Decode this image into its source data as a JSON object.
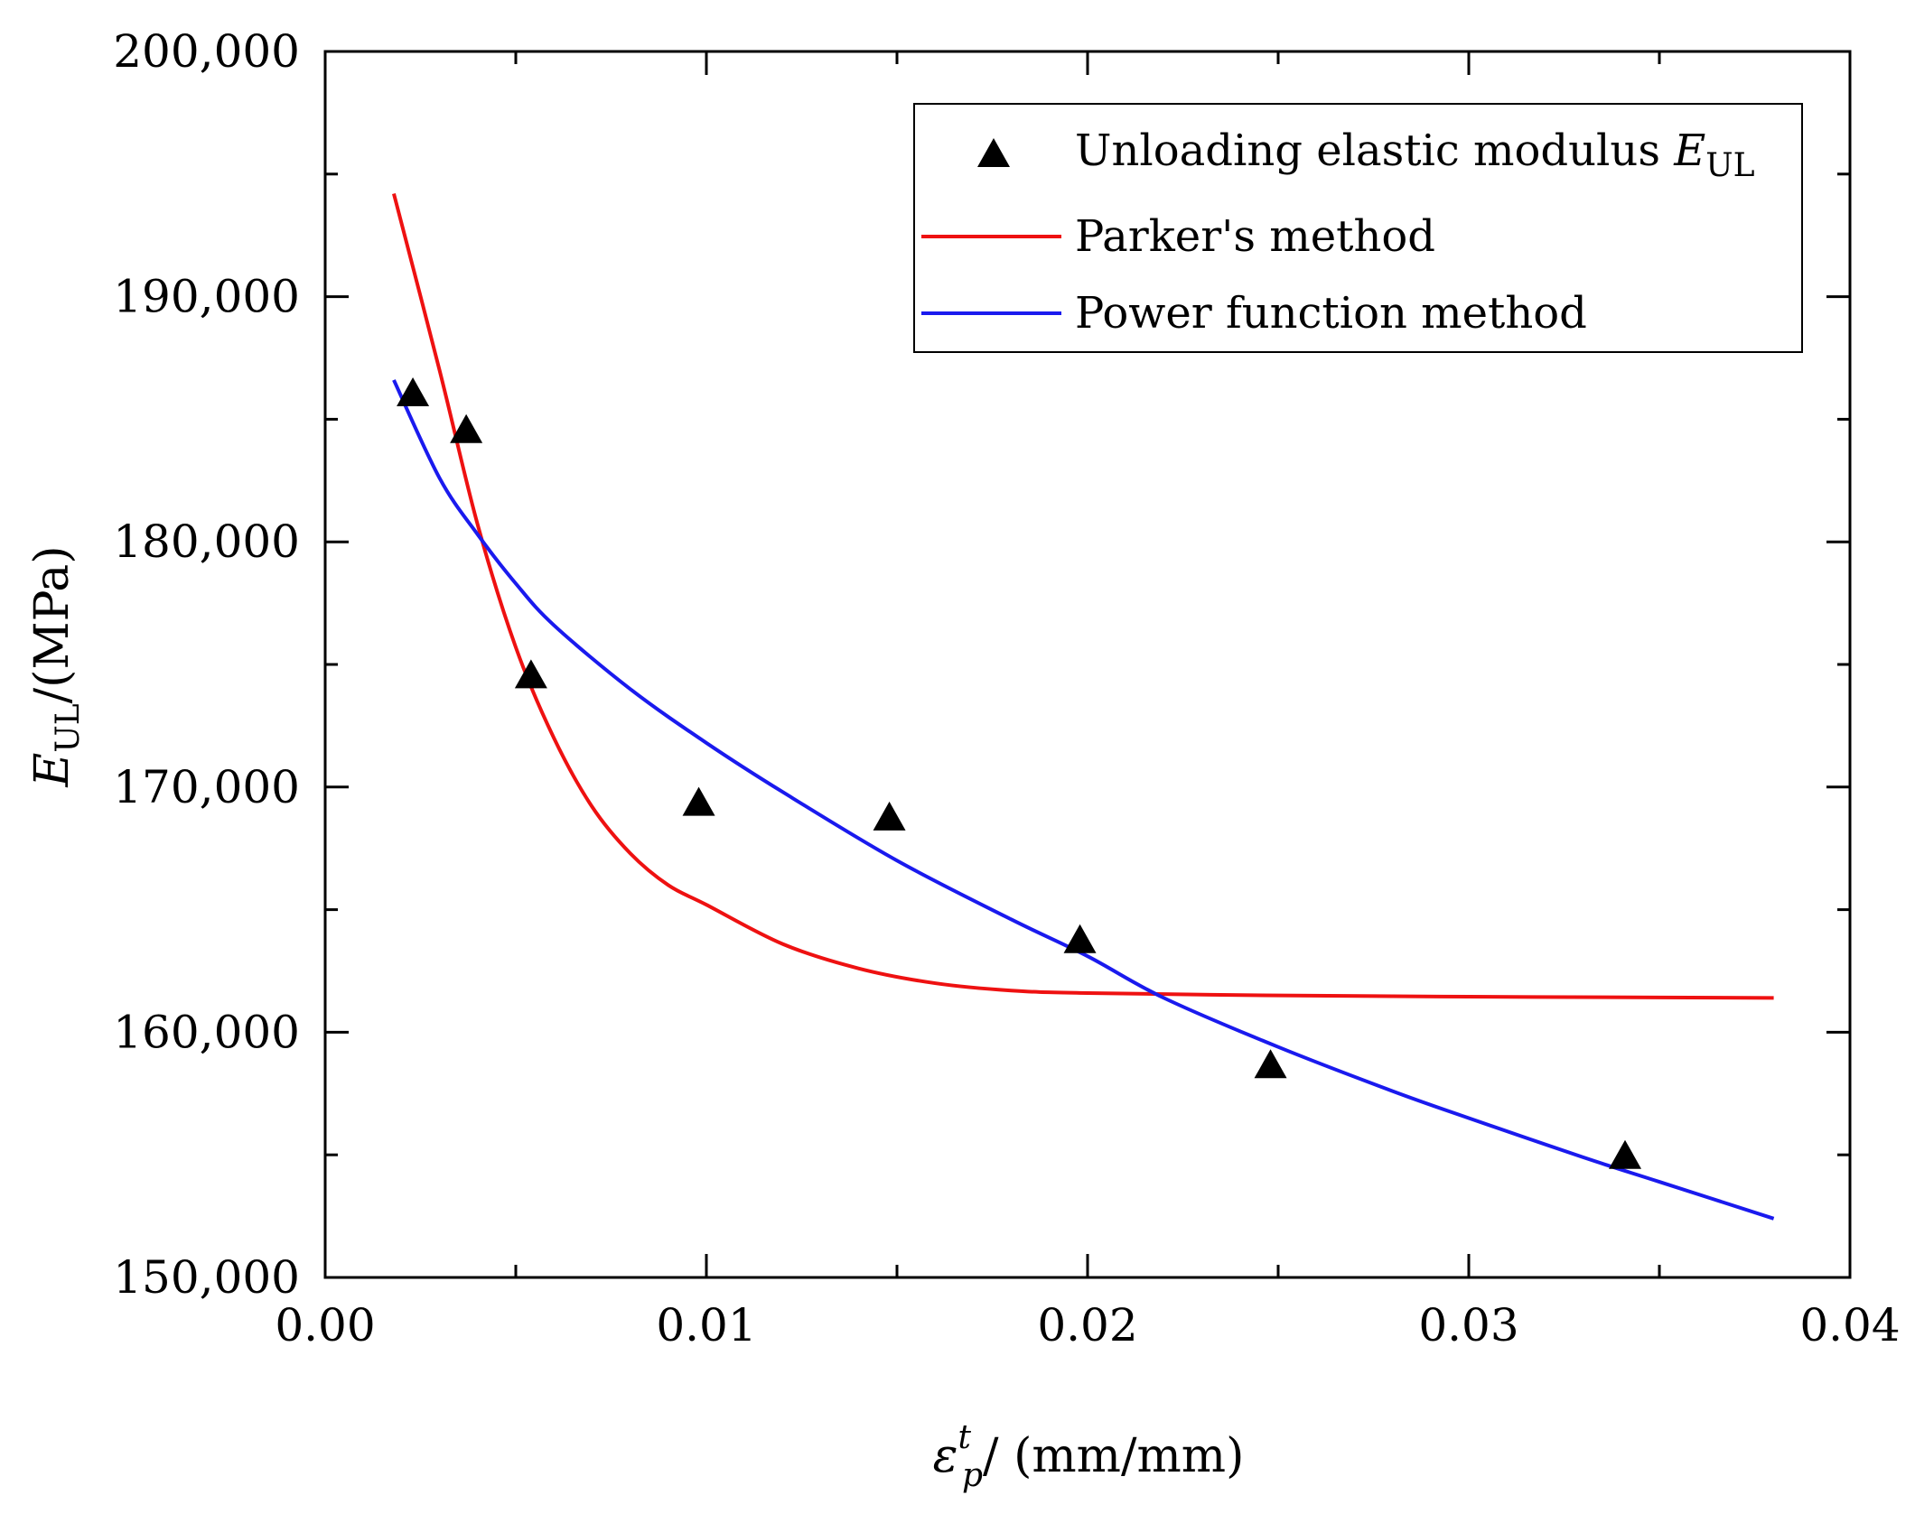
{
  "chart_data": {
    "type": "scatter",
    "xlabel": {
      "symbol": "ε",
      "superscript": "t",
      "subscript": "p",
      "unit": "/ (mm/mm)"
    },
    "ylabel": {
      "symbol": "E",
      "subscript": "UL",
      "unit": "/(MPa)"
    },
    "xlim": [
      0.0,
      0.04
    ],
    "ylim": [
      150000,
      200000
    ],
    "x_ticks": [
      0.0,
      0.01,
      0.02,
      0.03,
      0.04
    ],
    "x_tick_labels": [
      "0.00",
      "0.01",
      "0.02",
      "0.03",
      "0.04"
    ],
    "y_ticks": [
      150000,
      160000,
      170000,
      180000,
      190000,
      200000
    ],
    "y_tick_labels": [
      "150,000",
      "160,000",
      "170,000",
      "180,000",
      "190,000",
      "200,000"
    ],
    "legend_position": "top-right",
    "series": [
      {
        "name": "Unloading elastic modulus",
        "legend_symbol": "E",
        "legend_subscript": "UL",
        "kind": "scatter",
        "marker": "triangle",
        "color": "#000000",
        "x": [
          0.0023,
          0.0037,
          0.0054,
          0.0098,
          0.0148,
          0.0198,
          0.0248,
          0.0341
        ],
        "y": [
          186000,
          184500,
          174500,
          169300,
          168700,
          163700,
          158600,
          154900
        ]
      },
      {
        "name": "Parker's method",
        "kind": "line",
        "color": "#ee1111",
        "x": [
          0.0018,
          0.003,
          0.004,
          0.005,
          0.006,
          0.007,
          0.008,
          0.009,
          0.01,
          0.012,
          0.014,
          0.016,
          0.018,
          0.02,
          0.025,
          0.03,
          0.035,
          0.038
        ],
        "y": [
          194200,
          187000,
          180700,
          175700,
          172000,
          169200,
          167300,
          166000,
          165200,
          163600,
          162600,
          162000,
          161700,
          161600,
          161500,
          161450,
          161420,
          161400
        ]
      },
      {
        "name": "Power function method",
        "kind": "line",
        "color": "#1a1aee",
        "x": [
          0.0018,
          0.003,
          0.004,
          0.005,
          0.006,
          0.008,
          0.01,
          0.012,
          0.015,
          0.018,
          0.02,
          0.022,
          0.025,
          0.028,
          0.03,
          0.033,
          0.035,
          0.038
        ],
        "y": [
          186600,
          182600,
          180300,
          178300,
          176600,
          174000,
          171800,
          169800,
          167000,
          164600,
          163100,
          161400,
          159400,
          157600,
          156500,
          154900,
          153900,
          152400
        ]
      }
    ]
  }
}
